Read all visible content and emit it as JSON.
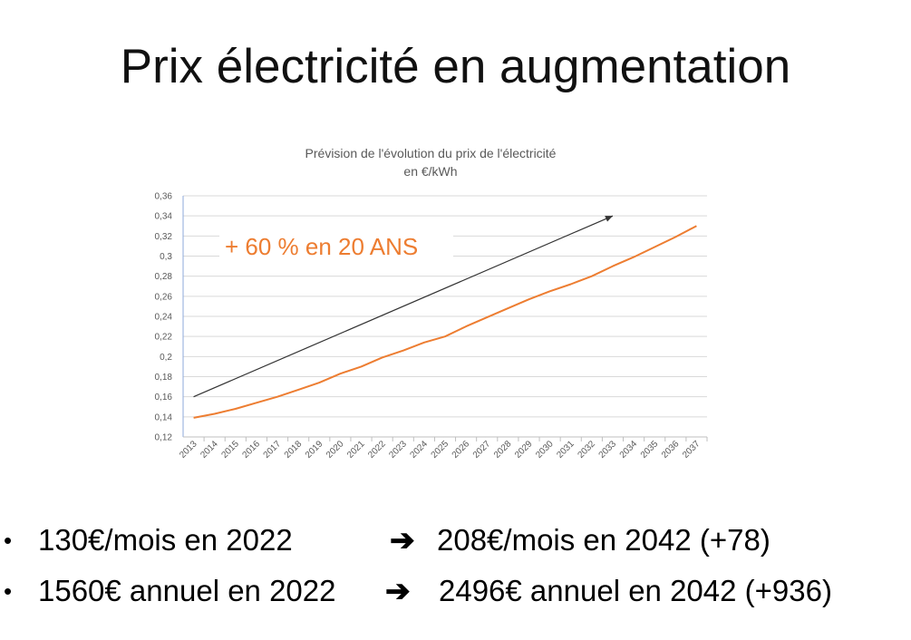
{
  "slide": {
    "title": "Prix électricité en augmentation"
  },
  "chart_data": {
    "type": "line",
    "title": "Prévision de l'évolution du prix de l'électricité",
    "subtitle": "en €/kWh",
    "annotation": "+ 60 % en 20 ANS",
    "categories": [
      "2013",
      "2014",
      "2015",
      "2016",
      "2017",
      "2018",
      "2019",
      "2020",
      "2021",
      "2022",
      "2023",
      "2024",
      "2025",
      "2026",
      "2027",
      "2028",
      "2029",
      "2030",
      "2031",
      "2032",
      "2033",
      "2034",
      "2035",
      "2036",
      "2037"
    ],
    "series": [
      {
        "values": [
          0.139,
          0.143,
          0.148,
          0.154,
          0.16,
          0.167,
          0.174,
          0.183,
          0.19,
          0.199,
          0.206,
          0.214,
          0.22,
          0.23,
          0.239,
          0.248,
          0.257,
          0.265,
          0.272,
          0.28,
          0.29,
          0.299,
          0.309,
          0.319,
          0.33
        ],
        "color": "#ED7D31"
      }
    ],
    "trend_arrow": {
      "from": [
        "2013",
        0.16
      ],
      "to": [
        "2033",
        0.34
      ],
      "color": "#333333"
    },
    "yticks": [
      "0,12",
      "0,14",
      "0,16",
      "0,18",
      "0,2",
      "0,22",
      "0,24",
      "0,26",
      "0,28",
      "0,3",
      "0,32",
      "0,34",
      "0,36"
    ],
    "ylim": [
      0.12,
      0.36
    ],
    "grid": true,
    "legend": "none",
    "annotation_color": "#ED7D31"
  },
  "bullets": [
    {
      "text": "130€/mois en 2022",
      "arrow": "➔",
      "result": "208€/mois en 2042 (+78)"
    },
    {
      "text": "1560€ annuel en 2022",
      "arrow": "➔",
      "result": "2496€ annuel en 2042 (+936)"
    }
  ]
}
